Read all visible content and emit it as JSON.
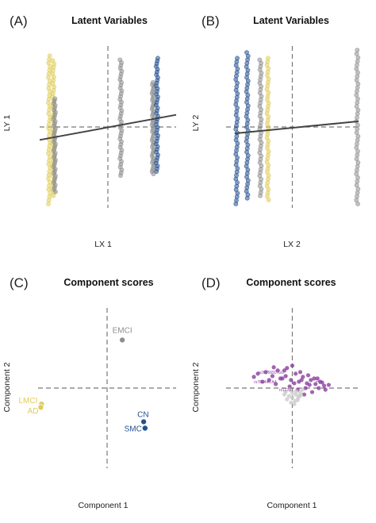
{
  "figure": {
    "panels": [
      {
        "letter": "(A)",
        "title": "Latent Variables",
        "xlabel": "LX 1",
        "ylabel": "LY 1"
      },
      {
        "letter": "(B)",
        "title": "Latent Variables",
        "xlabel": "LX 2",
        "ylabel": "LY 2"
      },
      {
        "letter": "(C)",
        "title": "Component scores",
        "xlabel": "Component 1",
        "ylabel": "Component 2"
      },
      {
        "letter": "(D)",
        "title": "Component scores",
        "xlabel": "Component 1",
        "ylabel": "Component 2"
      }
    ]
  },
  "colors": {
    "yellow": "#e0cc5a",
    "gray": "#8e8e8e",
    "blue": "#24508f",
    "purple": "#8a3f9e",
    "lightgray": "#cccccc",
    "dashed": "#777777",
    "fit": "#444444"
  },
  "chart_data": [
    {
      "type": "scatter",
      "panel": "A",
      "title": "Latent Variables",
      "xlabel": "LX 1",
      "ylabel": "LY 1",
      "reference_lines": {
        "x": 0,
        "y": 0
      },
      "xlim": [
        -1,
        1
      ],
      "ylim": [
        -1,
        1
      ],
      "groups": [
        {
          "color": "yellow",
          "columns": [
            {
              "x": -0.86,
              "ymin": -0.95,
              "ymax": 0.88
            },
            {
              "x": -0.8,
              "ymin": -0.85,
              "ymax": 0.82
            }
          ]
        },
        {
          "color": "gray",
          "columns": [
            {
              "x": -0.78,
              "ymin": -0.8,
              "ymax": 0.35
            },
            {
              "x": 0.19,
              "ymin": -0.6,
              "ymax": 0.83
            },
            {
              "x": 0.66,
              "ymin": -0.58,
              "ymax": 0.55
            }
          ]
        },
        {
          "color": "blue",
          "columns": [
            {
              "x": 0.72,
              "ymin": -0.55,
              "ymax": 0.85
            }
          ]
        }
      ],
      "fit_line": {
        "x": [
          -1,
          1
        ],
        "y": [
          -0.16,
          0.15
        ]
      }
    },
    {
      "type": "scatter",
      "panel": "B",
      "title": "Latent Variables",
      "xlabel": "LX 2",
      "ylabel": "LY 2",
      "reference_lines": {
        "x": 0,
        "y": 0
      },
      "xlim": [
        -1,
        1
      ],
      "ylim": [
        -1,
        1
      ],
      "groups": [
        {
          "color": "blue",
          "columns": [
            {
              "x": -0.84,
              "ymin": -0.95,
              "ymax": 0.85
            },
            {
              "x": -0.68,
              "ymin": -0.88,
              "ymax": 0.92
            }
          ]
        },
        {
          "color": "yellow",
          "columns": [
            {
              "x": -0.37,
              "ymin": -0.9,
              "ymax": 0.85
            }
          ]
        },
        {
          "color": "gray",
          "columns": [
            {
              "x": -0.48,
              "ymin": -0.85,
              "ymax": 0.83
            },
            {
              "x": 0.98,
              "ymin": -0.95,
              "ymax": 0.95
            }
          ]
        }
      ],
      "fit_line": {
        "x": [
          -0.87,
          1
        ],
        "y": [
          -0.08,
          0.07
        ]
      }
    },
    {
      "type": "scatter",
      "panel": "C",
      "title": "Component scores",
      "xlabel": "Component 1",
      "ylabel": "Component 2",
      "reference_lines": {
        "x": 0,
        "y": 0
      },
      "xlim": [
        -1,
        1
      ],
      "ylim": [
        -1,
        1
      ],
      "points": [
        {
          "label": "EMCI",
          "x": 0.22,
          "y": 0.6,
          "color": "gray"
        },
        {
          "label": "LMCI",
          "x": -0.95,
          "y": -0.2,
          "color": "yellow"
        },
        {
          "label": "AD",
          "x": -0.96,
          "y": -0.24,
          "color": "yellow"
        },
        {
          "label": "CN",
          "x": 0.53,
          "y": -0.42,
          "color": "blue"
        },
        {
          "label": "SMC",
          "x": 0.55,
          "y": -0.5,
          "color": "blue"
        }
      ]
    },
    {
      "type": "scatter",
      "panel": "D",
      "title": "Component scores",
      "xlabel": "Component 1",
      "ylabel": "Component 2",
      "reference_lines": {
        "x": 0,
        "y": 0
      },
      "xlim": [
        -1,
        1
      ],
      "ylim": [
        -1,
        1
      ],
      "series": [
        {
          "color": "purple",
          "points_x": [
            -0.52,
            -0.4,
            -0.3,
            -0.22,
            -0.15,
            -0.08,
            -0.02,
            0.05,
            0.1,
            0.16,
            0.22,
            0.28,
            0.35,
            0.42,
            0.48,
            0.55,
            -0.45,
            -0.35,
            -0.25,
            -0.18,
            -0.1,
            -0.04,
            0.03,
            0.08,
            0.14,
            0.2,
            0.26,
            0.33,
            0.4,
            0.5,
            -0.28,
            -0.12,
            0.0,
            0.12,
            0.24,
            0.38,
            0.45,
            -0.58,
            0.3,
            0.18
          ],
          "points_y": [
            0.18,
            0.2,
            0.15,
            0.22,
            0.12,
            0.25,
            0.1,
            0.18,
            0.08,
            0.14,
            0.06,
            0.1,
            0.05,
            0.08,
            0.03,
            0.04,
            0.08,
            0.1,
            0.05,
            0.12,
            0.15,
            0.02,
            0.06,
            -0.02,
            0.1,
            0.0,
            0.04,
            0.12,
            0.0,
            -0.02,
            0.26,
            0.22,
            0.28,
            0.2,
            0.16,
            0.12,
            0.07,
            0.14,
            -0.05,
            -0.08
          ]
        },
        {
          "color": "lightgray",
          "points_x": [
            -0.1,
            -0.05,
            0.0,
            0.05,
            0.08,
            0.12,
            -0.02,
            0.03,
            0.1,
            0.15,
            -0.08,
            0.06,
            0.0,
            0.04,
            -0.04,
            0.09,
            0.13,
            -0.12
          ],
          "points_y": [
            -0.05,
            -0.1,
            -0.12,
            -0.08,
            -0.15,
            -0.06,
            -0.18,
            -0.2,
            -0.1,
            -0.02,
            -0.14,
            -0.04,
            -0.06,
            -0.16,
            -0.02,
            -0.12,
            -0.09,
            -0.08
          ]
        }
      ],
      "labels": [
        {
          "text": "rs2075650.GG",
          "x": -0.52,
          "y": 0.18
        },
        {
          "text": "rs789446.AA",
          "x": -0.58,
          "y": 0.06
        },
        {
          "text": "rs1273...",
          "x": -0.2,
          "y": -0.04
        },
        {
          "text": "TT",
          "x": 0.35,
          "y": 0.05
        }
      ]
    }
  ]
}
